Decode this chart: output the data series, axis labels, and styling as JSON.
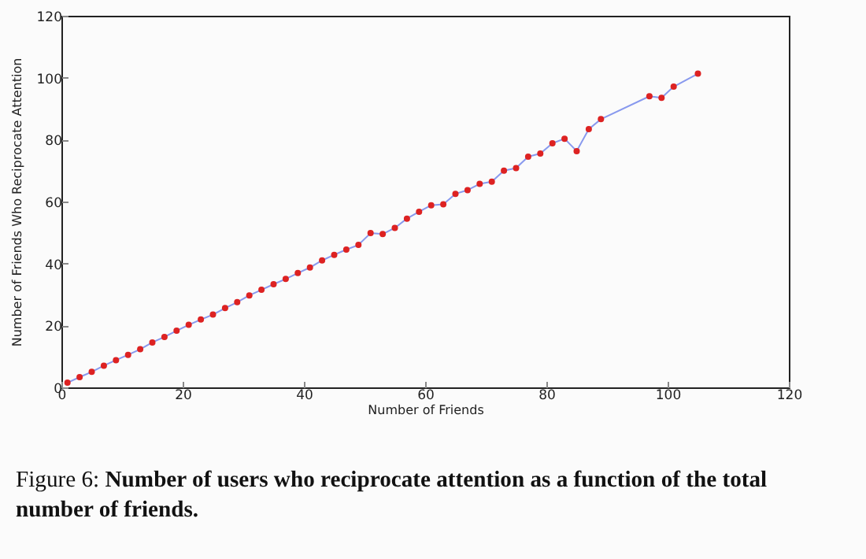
{
  "chart_data": {
    "type": "line",
    "xlabel": "Number of Friends",
    "ylabel": "Number of Friends Who Reciprocate Attention",
    "annotations": [
      "Figure 6: Number of users who reciprocate attention as a function of the total number of friends."
    ],
    "x": [
      1,
      3,
      5,
      7,
      9,
      11,
      13,
      15,
      17,
      19,
      21,
      23,
      25,
      27,
      29,
      31,
      33,
      35,
      37,
      39,
      41,
      43,
      45,
      47,
      49,
      51,
      53,
      55,
      57,
      59,
      61,
      63,
      65,
      67,
      69,
      71,
      73,
      75,
      77,
      79,
      81,
      83,
      85,
      87,
      89,
      97,
      99,
      101,
      105
    ],
    "series": [
      {
        "color": "#8899ee",
        "values": [
          1.5,
          3.3,
          5,
          7,
          8.8,
          10.5,
          12.3,
          14.5,
          16.3,
          18.3,
          20.2,
          21.9,
          23.5,
          25.6,
          27.5,
          29.7,
          31.5,
          33.3,
          35,
          36.9,
          38.7,
          41,
          42.8,
          44.5,
          46,
          49.8,
          49.5,
          51.5,
          54.5,
          56.7,
          58.8,
          59.1,
          62.5,
          63.7,
          65.7,
          66.4,
          70,
          70.8,
          74.5,
          75.5,
          78.8,
          80.3,
          76.3,
          83.4,
          86.6,
          94,
          93.5,
          97.1,
          101.3
        ]
      }
    ],
    "xlim": [
      0,
      120
    ],
    "ylim": [
      0,
      120
    ],
    "xticks": [
      0,
      20,
      40,
      60,
      80,
      100,
      120
    ],
    "yticks": [
      0,
      20,
      40,
      60,
      80,
      100,
      120
    ],
    "marker": "circle",
    "line_style": "solid"
  }
}
